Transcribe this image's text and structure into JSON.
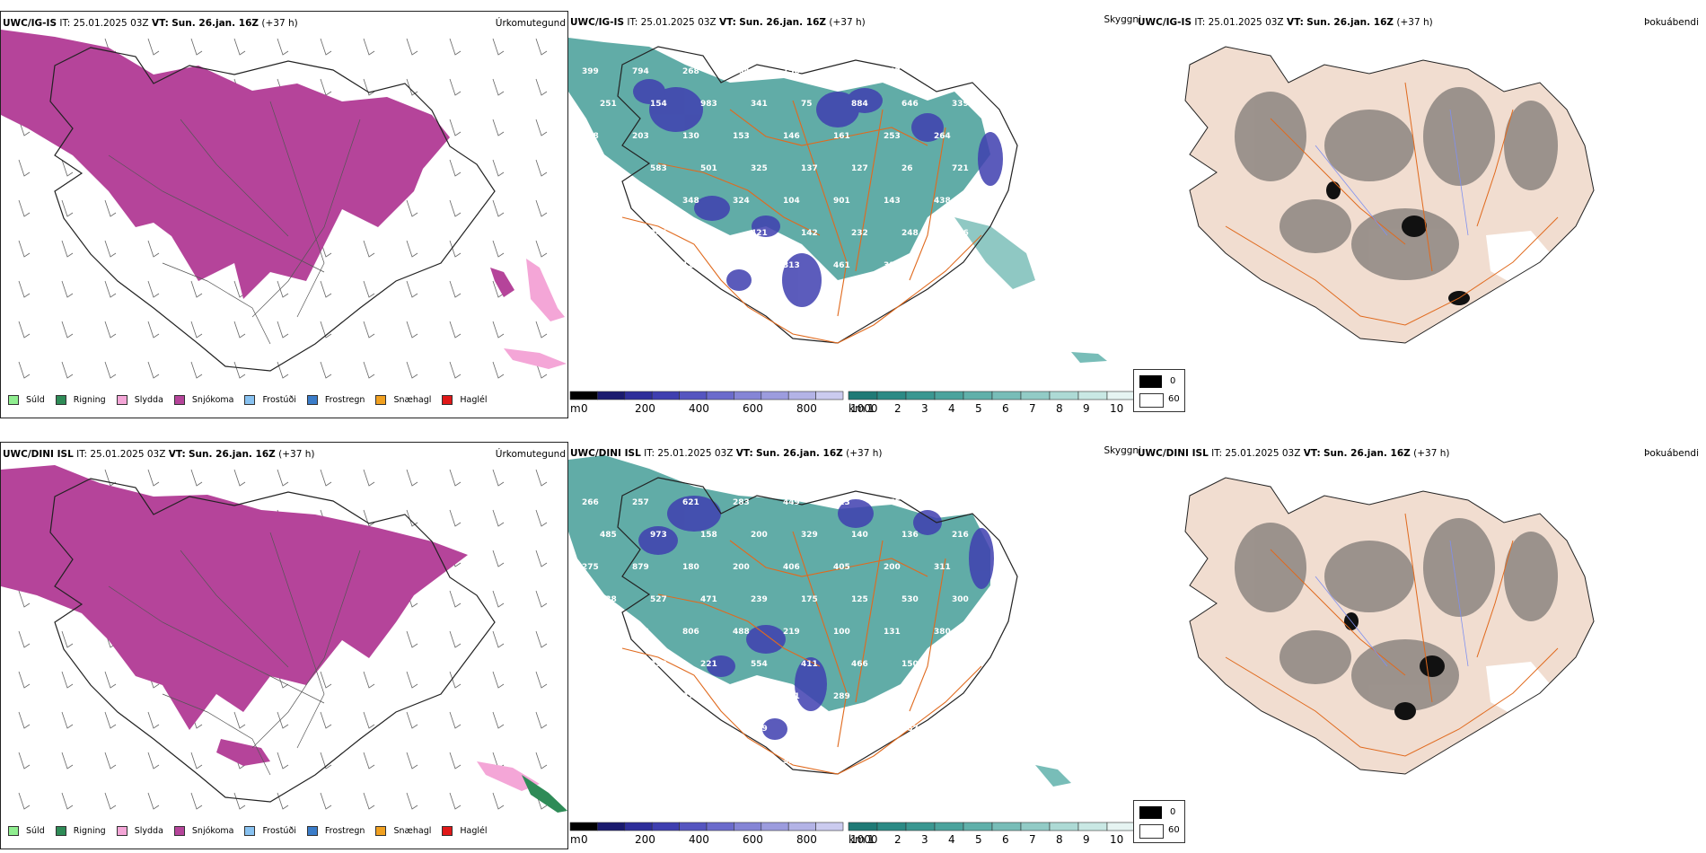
{
  "rows": [
    {
      "model": "UWC/IG-IS",
      "it_label": "IT:",
      "it_value": "25.01.2025 03Z",
      "vt_label": "VT:",
      "vt_value": "Sun. 26.jan. 16Z",
      "lead": "(+37 h)"
    },
    {
      "model": "UWC/DINI ISL",
      "it_label": "IT:",
      "it_value": "25.01.2025 03Z",
      "vt_label": "VT:",
      "vt_value": "Sun. 26.jan. 16Z",
      "lead": "(+37 h)"
    }
  ],
  "panels": {
    "precip_title": "Úrkomutegund",
    "cloud_title": "Skyggni",
    "fog_title": "Þokuábendi"
  },
  "precip_legend": [
    {
      "label": "Súld",
      "color": "#90ee90"
    },
    {
      "label": "Rigning",
      "color": "#2e8b57"
    },
    {
      "label": "Slydda",
      "color": "#f4a6d7"
    },
    {
      "label": "Snjókoma",
      "color": "#b5449a"
    },
    {
      "label": "Frostúði",
      "color": "#87c1f0"
    },
    {
      "label": "Frostregn",
      "color": "#3a7cc9"
    },
    {
      "label": "Snæhagl",
      "color": "#f0a020"
    },
    {
      "label": "Haglél",
      "color": "#e01818"
    }
  ],
  "cloud_base_scale": {
    "unit": "m",
    "ticks": [
      "0",
      "200",
      "400",
      "600",
      "800",
      "1000"
    ],
    "colors": [
      "#000000",
      "#1a1a6e",
      "#2e2e9a",
      "#3f3fb0",
      "#5555c0",
      "#6b6bcc",
      "#8585d6",
      "#9c9cde",
      "#b3b3e6",
      "#cbcbef"
    ]
  },
  "visibility_scale": {
    "unit": "km",
    "ticks": [
      "1",
      "2",
      "3",
      "4",
      "5",
      "6",
      "7",
      "8",
      "9",
      "10"
    ],
    "colors": [
      "#1f7a76",
      "#2b8a85",
      "#3a9791",
      "#4ba39d",
      "#60b0aa",
      "#78bdb8",
      "#92cbc6",
      "#addad5",
      "#c9e8e4",
      "#e6f4f2"
    ]
  },
  "fog_scale": {
    "ticks": [
      "0",
      "60"
    ]
  },
  "labels_top": [
    "399",
    "794",
    "268",
    "164",
    "156",
    "382",
    "647",
    "383",
    "251",
    "154",
    "983",
    "341",
    "75",
    "884",
    "646",
    "339",
    "958",
    "203",
    "130",
    "153",
    "146",
    "161",
    "253",
    "264",
    "649",
    "583",
    "501",
    "325",
    "137",
    "127",
    "26",
    "721",
    "307",
    "209",
    "348",
    "324",
    "104",
    "901",
    "143",
    "438",
    "168",
    "244",
    "413",
    "421",
    "142",
    "232",
    "248",
    "276",
    "193",
    "148",
    "128",
    "272",
    "313",
    "461",
    "310",
    "409",
    "104",
    "86",
    "146",
    "80"
  ],
  "labels_bottom": [
    "266",
    "257",
    "621",
    "283",
    "449",
    "823",
    "975",
    "405",
    "485",
    "973",
    "158",
    "200",
    "329",
    "140",
    "136",
    "216",
    "275",
    "879",
    "180",
    "200",
    "406",
    "405",
    "200",
    "311",
    "338",
    "527",
    "471",
    "239",
    "175",
    "125",
    "530",
    "300",
    "302",
    "248",
    "806",
    "488",
    "219",
    "100",
    "131",
    "380",
    "359",
    "233",
    "221",
    "554",
    "411",
    "466",
    "150",
    "197",
    "361",
    "412",
    "270",
    "242",
    "131",
    "289",
    "426",
    "43",
    "174",
    "99",
    "103",
    "109",
    "364",
    "352",
    "467",
    "167",
    "156",
    "233",
    "195",
    "279",
    "324",
    "77"
  ],
  "labels_color": "#ffffff",
  "colors": {
    "snow": "#b5449a",
    "sleet": "#f4a6d7",
    "rain": "#2e8b57",
    "teal": "#3a9791",
    "road": "#e06a1e",
    "land_fog": "#f1ddd0"
  }
}
